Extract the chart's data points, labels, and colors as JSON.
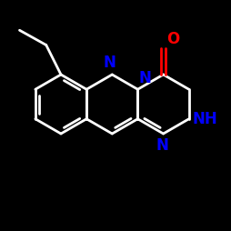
{
  "bg": "#000000",
  "wc": "#ffffff",
  "nc": "#0000ff",
  "oc": "#ff0000",
  "lw": 2.0,
  "lw_thick": 2.2,
  "fs": 12,
  "fs_nh": 11,
  "figsize": [
    2.5,
    2.5
  ],
  "dpi": 100,
  "note": "Tricyclic: benzene + quinazoline N-fused + triazinone. Hexagon flat-bottom orientation. Rings share vertical bonds."
}
